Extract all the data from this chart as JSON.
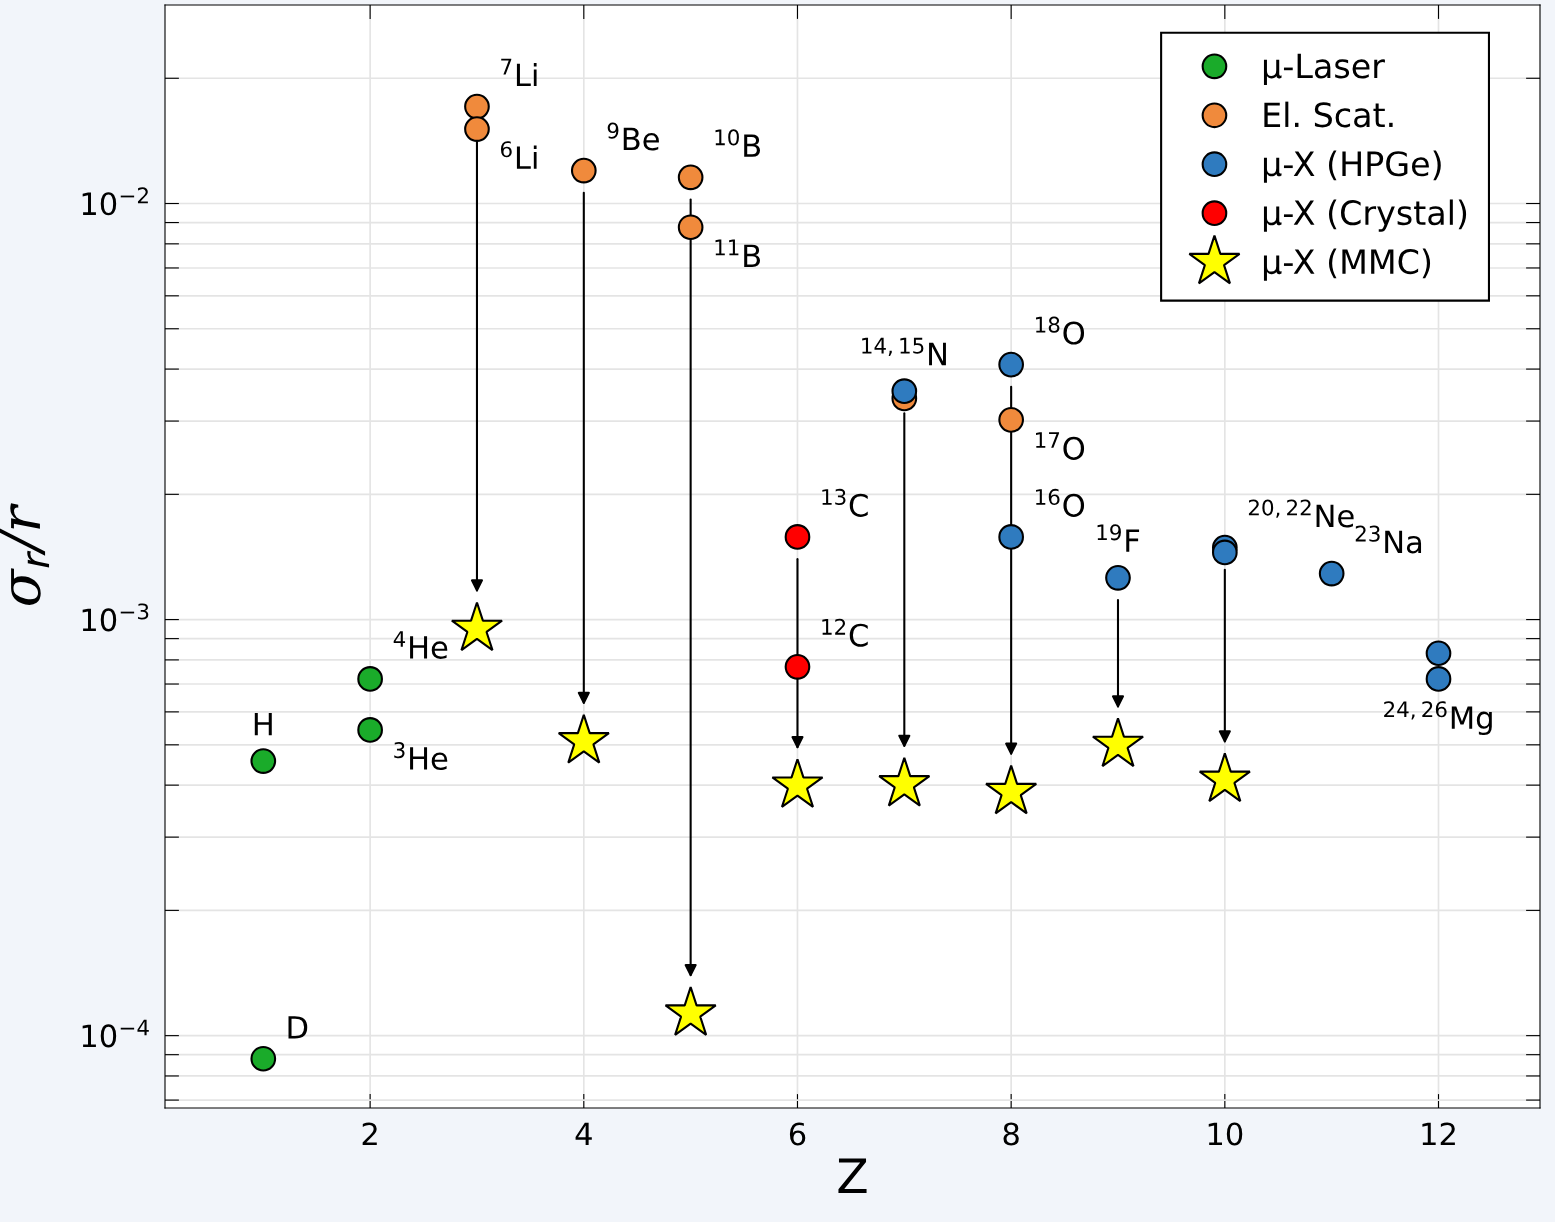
{
  "chart_data": {
    "type": "scatter",
    "xlabel": "Z",
    "ylabel": "σ$_{r}$/r",
    "log": "y",
    "grid": true,
    "legend": "top right",
    "xlim": [
      0.08,
      12.95
    ],
    "xticks": [
      2,
      4,
      6,
      8,
      10,
      12
    ],
    "ylim": [
      6.7e-05,
      0.03
    ],
    "yticks": [
      {
        "value": 7e-05,
        "label": null
      },
      {
        "value": 8e-05,
        "label": null
      },
      {
        "value": 9e-05,
        "label": null
      },
      {
        "value": 0.0001,
        "label": "10$^{−4}$"
      },
      {
        "value": 0.0002,
        "label": null
      },
      {
        "value": 0.0003,
        "label": null
      },
      {
        "value": 0.0004,
        "label": null
      },
      {
        "value": 0.0005,
        "label": null
      },
      {
        "value": 0.0006,
        "label": null
      },
      {
        "value": 0.0007,
        "label": null
      },
      {
        "value": 0.0008,
        "label": null
      },
      {
        "value": 0.0009,
        "label": null
      },
      {
        "value": 0.001,
        "label": "10$^{−3}$"
      },
      {
        "value": 0.002,
        "label": null
      },
      {
        "value": 0.003,
        "label": null
      },
      {
        "value": 0.004,
        "label": null
      },
      {
        "value": 0.005,
        "label": null
      },
      {
        "value": 0.006,
        "label": null
      },
      {
        "value": 0.007,
        "label": null
      },
      {
        "value": 0.008,
        "label": null
      },
      {
        "value": 0.009,
        "label": null
      },
      {
        "value": 0.01,
        "label": "10$^{−2}$"
      },
      {
        "value": 0.02,
        "label": null
      }
    ],
    "series": [
      {
        "name": "μ-Laser",
        "color": "#1aab2a",
        "marker": "circle",
        "x": [
          1,
          1,
          2,
          2
        ],
        "values": [
          0.000457,
          8.8e-05,
          0.000543,
          0.00072
        ]
      },
      {
        "name": "El. Scat.",
        "color": "#f08a3c",
        "marker": "circle",
        "x": [
          3,
          3,
          4,
          5,
          5,
          7,
          8
        ],
        "values": [
          0.0171,
          0.0151,
          0.012,
          0.01156,
          0.00877,
          0.0034,
          0.00302
        ]
      },
      {
        "name": "μ-X (HPGe)",
        "color": "#2f7bbf",
        "marker": "circle",
        "x": [
          7,
          8,
          8,
          9,
          10,
          10,
          11,
          12,
          12
        ],
        "values": [
          0.00354,
          0.0041,
          0.00158,
          0.00126,
          0.00149,
          0.00145,
          0.00129,
          0.00083,
          0.00072
        ]
      },
      {
        "name": "μ-X (Crystal)",
        "color": "#ff0000",
        "marker": "circle",
        "x": [
          6,
          6
        ],
        "values": [
          0.00158,
          0.00077
        ]
      },
      {
        "name": "μ-X (MMC)",
        "color": "#ffff00",
        "marker": "star",
        "x": [
          3,
          4,
          5,
          6,
          7,
          8,
          9,
          10
        ],
        "values": [
          0.00095,
          0.00051,
          0.000113,
          0.000399,
          0.000402,
          0.000385,
          0.0005,
          0.000412
        ]
      }
    ],
    "annotations": [
      {
        "text": "$^{7}$Li",
        "x": 3,
        "y": 0.0171
      },
      {
        "text": "$^{6}$Li",
        "x": 3,
        "y": 0.0151
      },
      {
        "text": "$^{9}$Be",
        "x": 4,
        "y": 0.012
      },
      {
        "text": "$^{10}$B",
        "x": 5,
        "y": 0.01156
      },
      {
        "text": "$^{11}$B",
        "x": 5,
        "y": 0.00877
      },
      {
        "text": "$^{13}$C",
        "x": 6,
        "y": 0.00158
      },
      {
        "text": "$^{12}$C",
        "x": 6,
        "y": 0.00077
      },
      {
        "text": "$^{14,15}$N",
        "x": 7,
        "y": 0.00354
      },
      {
        "text": "$^{18}$O",
        "x": 8,
        "y": 0.0041
      },
      {
        "text": "$^{17}$O",
        "x": 8,
        "y": 0.00302
      },
      {
        "text": "$^{16}$O",
        "x": 8,
        "y": 0.00158
      },
      {
        "text": "$^{19}$F",
        "x": 9,
        "y": 0.00126
      },
      {
        "text": "$^{20,22}$Ne",
        "x": 10,
        "y": 0.00149
      },
      {
        "text": "$^{23}$Na",
        "x": 11,
        "y": 0.00129
      },
      {
        "text": "$^{24,26}$Mg",
        "x": 12,
        "y": 0.00072
      },
      {
        "text": "$^{4}$He",
        "x": 2,
        "y": 0.00072
      },
      {
        "text": "$^{3}$He",
        "x": 2,
        "y": 0.000543
      },
      {
        "text": "H",
        "x": 1,
        "y": 0.000457
      },
      {
        "text": "D",
        "x": 1,
        "y": 8.8e-05
      }
    ]
  }
}
